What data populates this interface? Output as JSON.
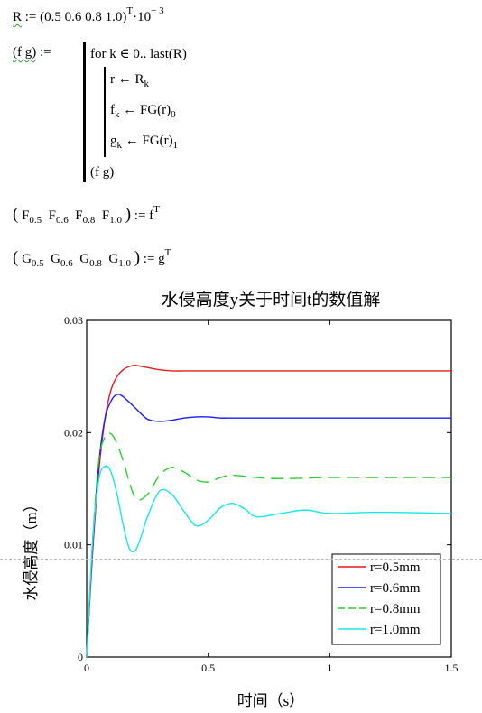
{
  "worksheet": {
    "r_def": {
      "name": "R",
      "assign": " := ",
      "vector": "(0.5  0.6  0.8  1.0)",
      "sup1": "T",
      "mid": "·10",
      "sup2": "− 3"
    },
    "fg_def": {
      "lhs": "(f  g)",
      "assign": " := "
    },
    "program": {
      "for_line": "for  k ∈ 0.. last(R)",
      "r_line": "r ← R",
      "r_sub": "k",
      "f_line_a": "f",
      "f_line_sub": "k",
      "f_line_b": " ← FG(r)",
      "f_line_sub2": "0",
      "g_line_a": "g",
      "g_line_sub": "k",
      "g_line_b": " ← FG(r)",
      "g_line_sub2": "1",
      "return_line": "(f   g)"
    },
    "F_def": {
      "open": "(",
      "items": [
        "F",
        "F",
        "F",
        "F"
      ],
      "subs": [
        "0.5",
        "0.6",
        "0.8",
        "1.0"
      ],
      "close": ")",
      "rhs": " := f",
      "sup": "T"
    },
    "G_def": {
      "open": "(",
      "items": [
        "G",
        "G",
        "G",
        "G"
      ],
      "subs": [
        "0.5",
        "0.6",
        "0.8",
        "1.0"
      ],
      "close": ")",
      "rhs": " := g",
      "sup": "T"
    }
  },
  "chart_data": {
    "type": "line",
    "title": "水侵高度y关于时间t的数值解",
    "xlabel": "时间（s）",
    "ylabel": "水侵高度（m）",
    "xlim": [
      0,
      1.5
    ],
    "ylim": [
      0,
      0.03
    ],
    "xticks": [
      "0",
      "0.5",
      "1",
      "1.5"
    ],
    "yticks": [
      "0",
      "0.01",
      "0.02",
      "0.03"
    ],
    "legend_position": "bottom-right",
    "series": [
      {
        "name": "r=0.5mm",
        "color": "#e41a1c",
        "dash": "solid",
        "x": [
          0,
          0.025,
          0.05,
          0.075,
          0.1,
          0.125,
          0.15,
          0.175,
          0.2,
          0.225,
          0.25,
          0.3,
          0.35,
          0.4,
          0.5,
          0.6,
          0.8,
          1.0,
          1.2,
          1.5
        ],
        "y": [
          0,
          0.0095,
          0.0165,
          0.0212,
          0.0238,
          0.025,
          0.0256,
          0.0259,
          0.026,
          0.0259,
          0.0258,
          0.0256,
          0.0255,
          0.0255,
          0.0255,
          0.0255,
          0.0255,
          0.0255,
          0.0255,
          0.0255
        ]
      },
      {
        "name": "r=0.6mm",
        "color": "#1a1aff",
        "dash": "solid",
        "x": [
          0,
          0.025,
          0.05,
          0.075,
          0.1,
          0.125,
          0.15,
          0.2,
          0.25,
          0.3,
          0.35,
          0.4,
          0.45,
          0.5,
          0.55,
          0.6,
          0.7,
          0.8,
          1.0,
          1.2,
          1.5
        ],
        "y": [
          0,
          0.01,
          0.0172,
          0.0212,
          0.0228,
          0.0234,
          0.0232,
          0.0222,
          0.0212,
          0.021,
          0.0211,
          0.0213,
          0.0214,
          0.0214,
          0.0213,
          0.0213,
          0.0213,
          0.0213,
          0.0213,
          0.0213,
          0.0213
        ]
      },
      {
        "name": "r=0.8mm",
        "color": "#2ecc2e",
        "dash": "dashed",
        "x": [
          0,
          0.025,
          0.05,
          0.075,
          0.1,
          0.125,
          0.15,
          0.2,
          0.25,
          0.3,
          0.35,
          0.4,
          0.45,
          0.5,
          0.55,
          0.6,
          0.7,
          0.8,
          1.0,
          1.2,
          1.5
        ],
        "y": [
          0,
          0.0105,
          0.0175,
          0.0196,
          0.0199,
          0.019,
          0.0175,
          0.0142,
          0.0145,
          0.0162,
          0.0169,
          0.0165,
          0.0158,
          0.0156,
          0.016,
          0.0162,
          0.016,
          0.0159,
          0.016,
          0.016,
          0.016
        ]
      },
      {
        "name": "r=1.0mm",
        "color": "#19e6e6",
        "dash": "solid",
        "x": [
          0,
          0.025,
          0.05,
          0.075,
          0.1,
          0.125,
          0.15,
          0.175,
          0.2,
          0.225,
          0.25,
          0.3,
          0.35,
          0.4,
          0.45,
          0.5,
          0.55,
          0.6,
          0.65,
          0.7,
          0.8,
          0.9,
          1.0,
          1.2,
          1.5
        ],
        "y": [
          0,
          0.0105,
          0.0158,
          0.017,
          0.0165,
          0.0145,
          0.0118,
          0.0097,
          0.0095,
          0.0108,
          0.0125,
          0.0148,
          0.0145,
          0.013,
          0.0117,
          0.0122,
          0.0133,
          0.0137,
          0.0132,
          0.0125,
          0.0128,
          0.0131,
          0.0128,
          0.0129,
          0.0128
        ]
      }
    ]
  }
}
